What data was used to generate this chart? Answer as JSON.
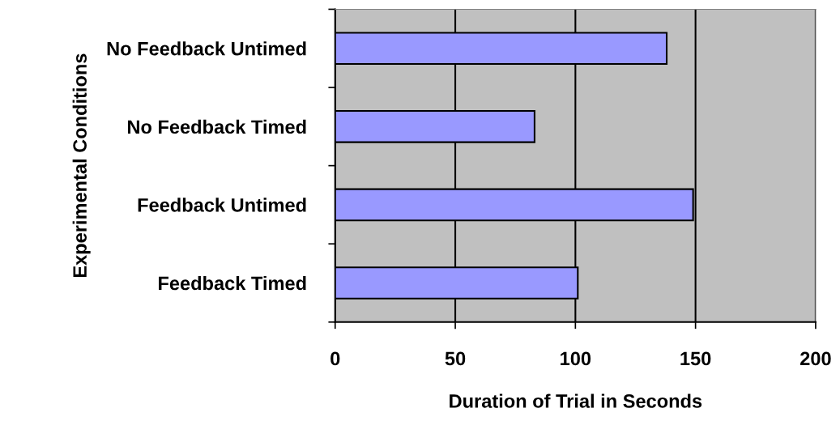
{
  "chart_data": {
    "type": "bar",
    "orientation": "horizontal",
    "xlabel": "Duration of Trial in Seconds",
    "ylabel": "Experimental Conditions",
    "categories": [
      "No Feedback Untimed",
      "No Feedback Timed",
      "Feedback Untimed",
      "Feedback Timed"
    ],
    "values": [
      138,
      83,
      149,
      101
    ],
    "color": "#9999ff",
    "xlim": [
      0,
      200
    ],
    "xticks": [
      0,
      50,
      100,
      150,
      200
    ],
    "grid": "x"
  }
}
